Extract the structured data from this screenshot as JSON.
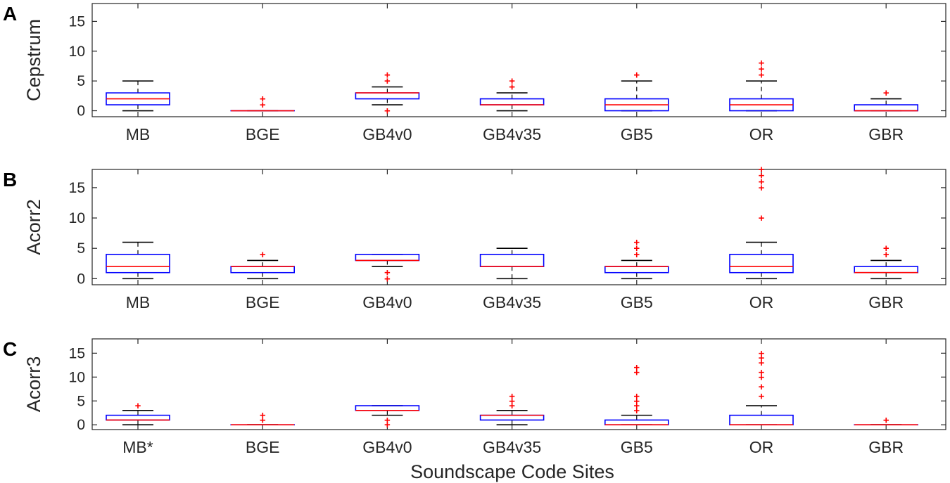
{
  "colors": {
    "box": "#0000ff",
    "median": "#ff0000",
    "outlier": "#ff0000",
    "whisker": "#000000",
    "axis": "#262626"
  },
  "outlier_symbol": "+",
  "chart_data": [
    {
      "type": "boxplot",
      "panel": "A",
      "ylabel": "Cepstrum",
      "ylim": [
        -1,
        18
      ],
      "yticks": [
        0,
        5,
        10,
        15
      ],
      "categories": [
        "MB",
        "BGE",
        "GB4v0",
        "GB4v35",
        "GB5",
        "OR",
        "GBR"
      ],
      "boxes": [
        {
          "whislo": 0,
          "q1": 1,
          "med": 2,
          "q3": 3,
          "whishi": 5,
          "fliers": []
        },
        {
          "whislo": 0,
          "q1": 0,
          "med": 0,
          "q3": 0,
          "whishi": 0,
          "fliers": [
            1,
            2
          ]
        },
        {
          "whislo": 1,
          "q1": 2,
          "med": 3,
          "q3": 3,
          "whishi": 4,
          "fliers": [
            0,
            5,
            6
          ]
        },
        {
          "whislo": 0,
          "q1": 1,
          "med": 1,
          "q3": 2,
          "whishi": 3,
          "fliers": [
            4,
            5
          ]
        },
        {
          "whislo": 0,
          "q1": 0,
          "med": 1,
          "q3": 2,
          "whishi": 5,
          "fliers": [
            6
          ]
        },
        {
          "whislo": 0,
          "q1": 0,
          "med": 1,
          "q3": 2,
          "whishi": 5,
          "fliers": [
            6,
            7,
            8
          ]
        },
        {
          "whislo": 0,
          "q1": 0,
          "med": 0,
          "q3": 1,
          "whishi": 2,
          "fliers": [
            3
          ]
        }
      ]
    },
    {
      "type": "boxplot",
      "panel": "B",
      "ylabel": "Acorr2",
      "ylim": [
        -1,
        18
      ],
      "yticks": [
        0,
        5,
        10,
        15
      ],
      "categories": [
        "MB",
        "BGE",
        "GB4v0",
        "GB4v35",
        "GB5",
        "OR",
        "GBR"
      ],
      "boxes": [
        {
          "whislo": 0,
          "q1": 1,
          "med": 2,
          "q3": 4,
          "whishi": 6,
          "fliers": []
        },
        {
          "whislo": 0,
          "q1": 1,
          "med": 2,
          "q3": 2,
          "whishi": 3,
          "fliers": [
            4
          ]
        },
        {
          "whislo": 2,
          "q1": 3,
          "med": 3,
          "q3": 4,
          "whishi": 4,
          "fliers": [
            0,
            1
          ]
        },
        {
          "whislo": 0,
          "q1": 2,
          "med": 2,
          "q3": 4,
          "whishi": 5,
          "fliers": []
        },
        {
          "whislo": 0,
          "q1": 1,
          "med": 2,
          "q3": 2,
          "whishi": 3,
          "fliers": [
            4,
            5,
            6
          ]
        },
        {
          "whislo": 0,
          "q1": 1,
          "med": 2,
          "q3": 4,
          "whishi": 6,
          "fliers": [
            10,
            15,
            16,
            17,
            18
          ]
        },
        {
          "whislo": 0,
          "q1": 1,
          "med": 1,
          "q3": 2,
          "whishi": 3,
          "fliers": [
            4,
            5
          ]
        }
      ]
    },
    {
      "type": "boxplot",
      "panel": "C",
      "ylabel": "Acorr3",
      "xlabel": "Soundscape Code Sites",
      "ylim": [
        -1,
        18
      ],
      "yticks": [
        0,
        5,
        10,
        15
      ],
      "categories": [
        "MB*",
        "BGE",
        "GB4v0",
        "GB4v35",
        "GB5",
        "OR",
        "GBR"
      ],
      "boxes": [
        {
          "whislo": 0,
          "q1": 1,
          "med": 1,
          "q3": 2,
          "whishi": 3,
          "fliers": [
            4
          ]
        },
        {
          "whislo": 0,
          "q1": 0,
          "med": 0,
          "q3": 0,
          "whishi": 0,
          "fliers": [
            1,
            2
          ]
        },
        {
          "whislo": 2,
          "q1": 3,
          "med": 3,
          "q3": 4,
          "whishi": 4,
          "fliers": [
            0,
            1
          ]
        },
        {
          "whislo": 0,
          "q1": 1,
          "med": 2,
          "q3": 2,
          "whishi": 3,
          "fliers": [
            4,
            5,
            6
          ]
        },
        {
          "whislo": 0,
          "q1": 0,
          "med": 0,
          "q3": 1,
          "whishi": 2,
          "fliers": [
            3,
            4,
            5,
            6,
            11,
            12
          ]
        },
        {
          "whislo": 0,
          "q1": 0,
          "med": 0,
          "q3": 2,
          "whishi": 4,
          "fliers": [
            6,
            8,
            10,
            11,
            13,
            14,
            15
          ]
        },
        {
          "whislo": 0,
          "q1": 0,
          "med": 0,
          "q3": 0,
          "whishi": 0,
          "fliers": [
            1
          ]
        }
      ]
    }
  ]
}
